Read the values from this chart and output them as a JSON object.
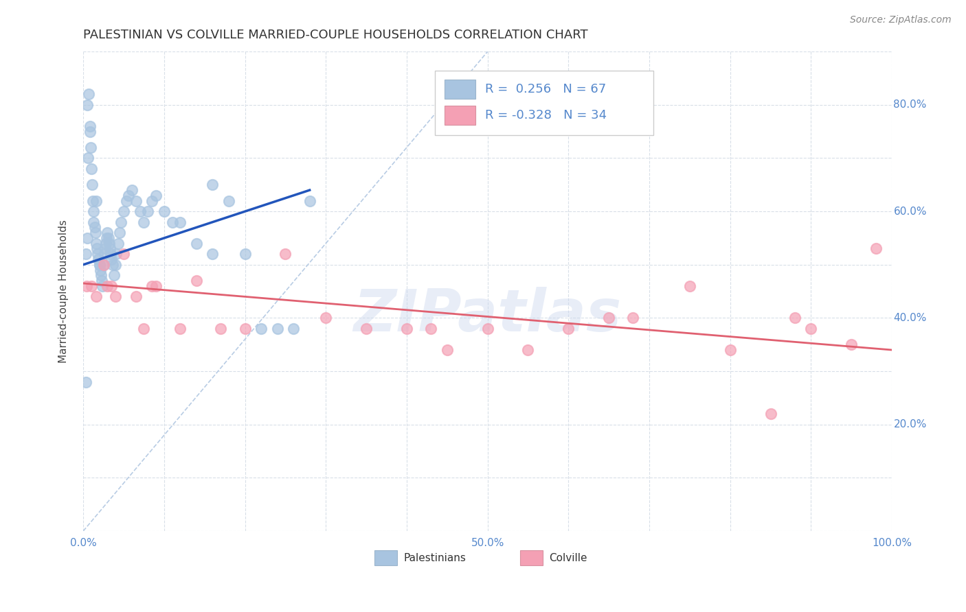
{
  "title": "PALESTINIAN VS COLVILLE MARRIED-COUPLE HOUSEHOLDS CORRELATION CHART",
  "source": "Source: ZipAtlas.com",
  "ylabel": "Married-couple Households",
  "xlim": [
    0.0,
    1.0
  ],
  "ylim": [
    0.0,
    0.9
  ],
  "x_ticks": [
    0.0,
    0.1,
    0.2,
    0.3,
    0.4,
    0.5,
    0.6,
    0.7,
    0.8,
    0.9,
    1.0
  ],
  "x_tick_labels": [
    "0.0%",
    "",
    "",
    "",
    "",
    "50.0%",
    "",
    "",
    "",
    "",
    "100.0%"
  ],
  "y_ticks": [
    0.0,
    0.1,
    0.2,
    0.3,
    0.4,
    0.5,
    0.6,
    0.7,
    0.8,
    0.9
  ],
  "y_tick_labels": [
    "",
    "",
    "20.0%",
    "",
    "40.0%",
    "",
    "60.0%",
    "",
    "80.0%",
    ""
  ],
  "palestinian_color": "#a8c4e0",
  "colville_color": "#f4a0b4",
  "palestinian_line_color": "#2255bb",
  "colville_line_color": "#e06070",
  "diagonal_color": "#b8cce4",
  "r_palestinian": 0.256,
  "n_palestinian": 67,
  "r_colville": -0.328,
  "n_colville": 34,
  "watermark": "ZIPatlas",
  "legend_label_1": "Palestinians",
  "legend_label_2": "Colville",
  "background_color": "#ffffff",
  "grid_color": "#d8dfe8",
  "tick_color": "#5588cc",
  "title_color": "#333333",
  "source_color": "#888888",
  "ylabel_color": "#444444",
  "palestinian_x": [
    0.003,
    0.005,
    0.005,
    0.007,
    0.008,
    0.008,
    0.009,
    0.01,
    0.011,
    0.012,
    0.013,
    0.013,
    0.014,
    0.015,
    0.016,
    0.017,
    0.018,
    0.019,
    0.02,
    0.02,
    0.021,
    0.022,
    0.023,
    0.024,
    0.025,
    0.026,
    0.027,
    0.028,
    0.029,
    0.03,
    0.031,
    0.032,
    0.033,
    0.034,
    0.035,
    0.036,
    0.038,
    0.04,
    0.041,
    0.043,
    0.045,
    0.047,
    0.05,
    0.053,
    0.056,
    0.06,
    0.065,
    0.07,
    0.075,
    0.08,
    0.085,
    0.09,
    0.1,
    0.11,
    0.12,
    0.14,
    0.16,
    0.18,
    0.2,
    0.22,
    0.24,
    0.26,
    0.28,
    0.003,
    0.006,
    0.016,
    0.16
  ],
  "palestinian_y": [
    0.52,
    0.55,
    0.8,
    0.82,
    0.76,
    0.75,
    0.72,
    0.68,
    0.65,
    0.62,
    0.6,
    0.58,
    0.57,
    0.56,
    0.54,
    0.53,
    0.52,
    0.51,
    0.5,
    0.5,
    0.49,
    0.48,
    0.47,
    0.46,
    0.5,
    0.52,
    0.53,
    0.54,
    0.55,
    0.56,
    0.55,
    0.54,
    0.53,
    0.52,
    0.51,
    0.5,
    0.48,
    0.5,
    0.52,
    0.54,
    0.56,
    0.58,
    0.6,
    0.62,
    0.63,
    0.64,
    0.62,
    0.6,
    0.58,
    0.6,
    0.62,
    0.63,
    0.6,
    0.58,
    0.58,
    0.54,
    0.52,
    0.62,
    0.52,
    0.38,
    0.38,
    0.38,
    0.62,
    0.28,
    0.7,
    0.62,
    0.65
  ],
  "colville_x": [
    0.004,
    0.01,
    0.016,
    0.025,
    0.03,
    0.035,
    0.04,
    0.05,
    0.065,
    0.075,
    0.085,
    0.09,
    0.12,
    0.14,
    0.17,
    0.2,
    0.25,
    0.3,
    0.35,
    0.4,
    0.43,
    0.45,
    0.5,
    0.55,
    0.6,
    0.65,
    0.68,
    0.75,
    0.8,
    0.85,
    0.88,
    0.9,
    0.95,
    0.98
  ],
  "colville_y": [
    0.46,
    0.46,
    0.44,
    0.5,
    0.46,
    0.46,
    0.44,
    0.52,
    0.44,
    0.38,
    0.46,
    0.46,
    0.38,
    0.47,
    0.38,
    0.38,
    0.52,
    0.4,
    0.38,
    0.38,
    0.38,
    0.34,
    0.38,
    0.34,
    0.38,
    0.4,
    0.4,
    0.46,
    0.34,
    0.22,
    0.4,
    0.38,
    0.35,
    0.53
  ]
}
